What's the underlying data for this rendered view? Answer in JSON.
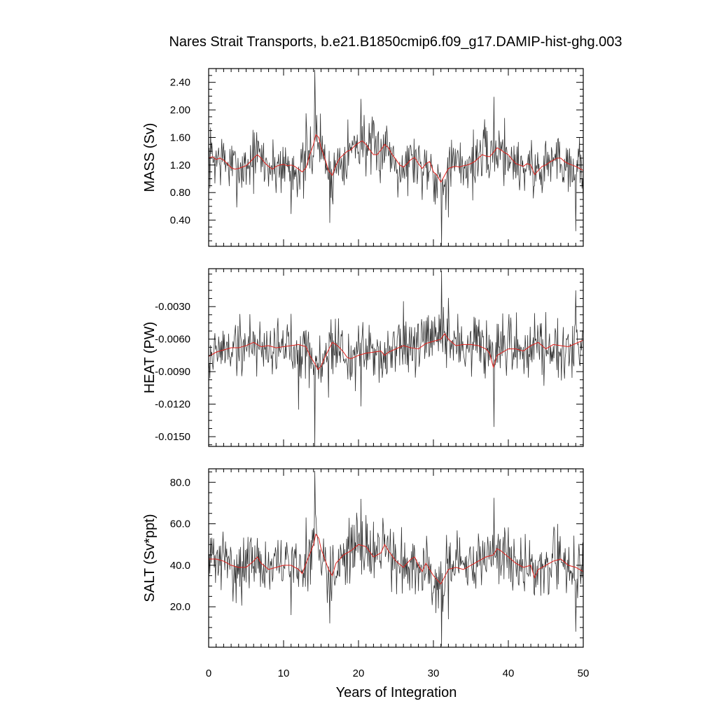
{
  "title": "Nares Strait Transports, b.e21.B1850cmip6.f09_g17.DAMIP-hist-ghg.003",
  "colors": {
    "raw_line": "#333333",
    "smooth_line": "#e0201b",
    "frame": "#000000"
  },
  "chart_data": {
    "type": "line",
    "title": "Nares Strait Transports, b.e21.B1850cmip6.f09_g17.DAMIP-hist-ghg.003",
    "xlabel": "Years of Integration",
    "xlim": [
      0,
      50
    ],
    "xticks": [
      0,
      10,
      20,
      30,
      40,
      50
    ],
    "xtick_labels": [
      "0",
      "10",
      "20",
      "30",
      "40",
      "50"
    ],
    "grid": false,
    "legend": "none",
    "panels": [
      {
        "id": "mass",
        "ylabel": "MASS (Sv)",
        "ylim": [
          0.02,
          2.6
        ],
        "yticks": [
          0.4,
          0.8,
          1.2,
          1.6,
          2.0,
          2.4
        ],
        "ytick_labels": [
          "0.40",
          "0.80",
          "1.20",
          "1.60",
          "2.00",
          "2.40"
        ],
        "seed": 7,
        "smooth": [
          [
            0,
            1.3
          ],
          [
            0.5,
            1.32
          ],
          [
            1,
            1.28
          ],
          [
            1.5,
            1.3
          ],
          [
            2,
            1.27
          ],
          [
            2.5,
            1.22
          ],
          [
            3,
            1.16
          ],
          [
            3.5,
            1.14
          ],
          [
            4,
            1.15
          ],
          [
            4.5,
            1.17
          ],
          [
            5,
            1.19
          ],
          [
            5.5,
            1.24
          ],
          [
            6,
            1.3
          ],
          [
            6.5,
            1.35
          ],
          [
            7,
            1.3
          ],
          [
            7.5,
            1.23
          ],
          [
            8,
            1.18
          ],
          [
            8.5,
            1.14
          ],
          [
            9,
            1.18
          ],
          [
            9.5,
            1.2
          ],
          [
            10,
            1.21
          ],
          [
            10.5,
            1.19
          ],
          [
            11,
            1.2
          ],
          [
            11.5,
            1.18
          ],
          [
            12,
            1.14
          ],
          [
            12.5,
            1.1
          ],
          [
            13,
            1.16
          ],
          [
            13.5,
            1.35
          ],
          [
            14,
            1.5
          ],
          [
            14.3,
            1.64
          ],
          [
            14.7,
            1.6
          ],
          [
            15,
            1.45
          ],
          [
            15.5,
            1.3
          ],
          [
            16,
            1.12
          ],
          [
            16.5,
            1.05
          ],
          [
            17,
            1.2
          ],
          [
            17.5,
            1.3
          ],
          [
            18,
            1.35
          ],
          [
            18.5,
            1.4
          ],
          [
            19,
            1.42
          ],
          [
            19.5,
            1.48
          ],
          [
            20,
            1.52
          ],
          [
            20.5,
            1.55
          ],
          [
            21,
            1.5
          ],
          [
            21.5,
            1.42
          ],
          [
            22,
            1.35
          ],
          [
            22.5,
            1.35
          ],
          [
            23,
            1.42
          ],
          [
            23.5,
            1.5
          ],
          [
            24,
            1.45
          ],
          [
            24.5,
            1.35
          ],
          [
            25,
            1.28
          ],
          [
            25.5,
            1.2
          ],
          [
            26,
            1.17
          ],
          [
            26.5,
            1.22
          ],
          [
            27,
            1.28
          ],
          [
            27.5,
            1.31
          ],
          [
            28,
            1.22
          ],
          [
            28.5,
            1.15
          ],
          [
            29,
            1.22
          ],
          [
            29.5,
            1.25
          ],
          [
            30,
            1.1
          ],
          [
            30.5,
            1.05
          ],
          [
            31,
            0.95
          ],
          [
            31.5,
            1.05
          ],
          [
            32,
            1.15
          ],
          [
            32.5,
            1.17
          ],
          [
            33,
            1.18
          ],
          [
            33.5,
            1.17
          ],
          [
            34,
            1.19
          ],
          [
            34.5,
            1.2
          ],
          [
            35,
            1.22
          ],
          [
            35.5,
            1.25
          ],
          [
            36,
            1.3
          ],
          [
            36.5,
            1.35
          ],
          [
            37,
            1.33
          ],
          [
            37.5,
            1.32
          ],
          [
            38,
            1.38
          ],
          [
            38.5,
            1.45
          ],
          [
            39,
            1.42
          ],
          [
            39.5,
            1.38
          ],
          [
            40,
            1.35
          ],
          [
            40.5,
            1.28
          ],
          [
            41,
            1.22
          ],
          [
            41.5,
            1.2
          ],
          [
            42,
            1.18
          ],
          [
            42.5,
            1.22
          ],
          [
            43,
            1.2
          ],
          [
            43.5,
            1.06
          ],
          [
            44,
            1.12
          ],
          [
            44.5,
            1.18
          ],
          [
            45,
            1.2
          ],
          [
            45.5,
            1.24
          ],
          [
            46,
            1.27
          ],
          [
            46.5,
            1.3
          ],
          [
            47,
            1.3
          ],
          [
            47.5,
            1.25
          ],
          [
            48,
            1.22
          ],
          [
            48.5,
            1.2
          ],
          [
            49,
            1.18
          ],
          [
            49.5,
            1.15
          ],
          [
            50,
            1.12
          ]
        ],
        "spikes": [
          [
            14.2,
            2.58
          ],
          [
            13.0,
            1.95
          ],
          [
            16.2,
            0.36
          ],
          [
            20.3,
            2.16
          ],
          [
            31.1,
            0.03
          ],
          [
            38.1,
            2.19
          ],
          [
            49.0,
            0.24
          ],
          [
            11.0,
            0.49
          ],
          [
            32.0,
            0.44
          ],
          [
            22.0,
            1.85
          ]
        ]
      },
      {
        "id": "heat",
        "ylabel": "HEAT (PW)",
        "ylim": [
          -0.0159,
          0.0005
        ],
        "yticks": [
          -0.003,
          -0.006,
          -0.009,
          -0.012,
          -0.015
        ],
        "ytick_labels": [
          "-0.0030",
          "-0.0060",
          "-0.0090",
          "-0.0120",
          "-0.0150"
        ],
        "seed": 19,
        "smooth": [
          [
            0,
            -0.0076
          ],
          [
            1,
            -0.0072
          ],
          [
            2,
            -0.007
          ],
          [
            3,
            -0.0068
          ],
          [
            4,
            -0.0068
          ],
          [
            5,
            -0.0066
          ],
          [
            6,
            -0.0063
          ],
          [
            7,
            -0.0067
          ],
          [
            8,
            -0.0066
          ],
          [
            9,
            -0.0068
          ],
          [
            10,
            -0.0067
          ],
          [
            11,
            -0.0066
          ],
          [
            12,
            -0.0065
          ],
          [
            13,
            -0.0067
          ],
          [
            13.5,
            -0.0075
          ],
          [
            14.2,
            -0.0083
          ],
          [
            14.6,
            -0.0088
          ],
          [
            15,
            -0.0085
          ],
          [
            15.5,
            -0.0077
          ],
          [
            16,
            -0.007
          ],
          [
            16.5,
            -0.0063
          ],
          [
            17,
            -0.0065
          ],
          [
            17.5,
            -0.0068
          ],
          [
            18,
            -0.0072
          ],
          [
            18.5,
            -0.0077
          ],
          [
            19,
            -0.0078
          ],
          [
            20,
            -0.0075
          ],
          [
            21,
            -0.0073
          ],
          [
            22,
            -0.0072
          ],
          [
            23,
            -0.0071
          ],
          [
            23.5,
            -0.0075
          ],
          [
            24,
            -0.0072
          ],
          [
            25,
            -0.0069
          ],
          [
            26,
            -0.0066
          ],
          [
            27,
            -0.0068
          ],
          [
            28,
            -0.0069
          ],
          [
            29,
            -0.0064
          ],
          [
            30,
            -0.0062
          ],
          [
            31,
            -0.006
          ],
          [
            31.5,
            -0.0055
          ],
          [
            32,
            -0.006
          ],
          [
            33,
            -0.0066
          ],
          [
            34,
            -0.0065
          ],
          [
            35,
            -0.0065
          ],
          [
            36,
            -0.0066
          ],
          [
            37,
            -0.0069
          ],
          [
            37.5,
            -0.0073
          ],
          [
            38,
            -0.0086
          ],
          [
            38.5,
            -0.0075
          ],
          [
            39,
            -0.0073
          ],
          [
            40,
            -0.0069
          ],
          [
            41,
            -0.0069
          ],
          [
            42,
            -0.0071
          ],
          [
            43,
            -0.0066
          ],
          [
            44,
            -0.0063
          ],
          [
            45,
            -0.0069
          ],
          [
            46,
            -0.0065
          ],
          [
            47,
            -0.0066
          ],
          [
            48,
            -0.0067
          ],
          [
            49,
            -0.0064
          ],
          [
            50,
            -0.0061
          ]
        ],
        "spikes": [
          [
            14.2,
            -0.0159
          ],
          [
            31.1,
            0.0003
          ],
          [
            38.1,
            -0.0141
          ],
          [
            49.0,
            -0.0015
          ],
          [
            20.3,
            -0.0122
          ],
          [
            32.0,
            -0.0022
          ],
          [
            12.0,
            -0.0125
          ],
          [
            26.0,
            -0.0025
          ],
          [
            16.0,
            -0.0114
          ],
          [
            45.0,
            -0.0035
          ]
        ]
      },
      {
        "id": "salt",
        "ylabel": "SALT (Sv*ppt)",
        "ylim": [
          0.5,
          86.5
        ],
        "yticks": [
          20.0,
          40.0,
          60.0,
          80.0
        ],
        "ytick_labels": [
          "20.0",
          "40.0",
          "60.0",
          "80.0"
        ],
        "seed": 31,
        "smooth": [
          [
            0,
            43
          ],
          [
            1,
            43
          ],
          [
            2,
            42
          ],
          [
            3,
            40
          ],
          [
            4,
            39
          ],
          [
            5,
            39
          ],
          [
            6,
            42
          ],
          [
            6.5,
            44
          ],
          [
            7,
            41
          ],
          [
            8,
            38
          ],
          [
            9,
            39
          ],
          [
            10,
            40
          ],
          [
            11,
            40
          ],
          [
            12,
            38
          ],
          [
            12.5,
            36
          ],
          [
            13,
            41
          ],
          [
            14,
            50
          ],
          [
            14.3,
            55
          ],
          [
            14.7,
            53
          ],
          [
            15,
            48
          ],
          [
            16,
            38
          ],
          [
            16.5,
            35
          ],
          [
            17,
            41
          ],
          [
            18,
            45
          ],
          [
            19,
            47
          ],
          [
            20,
            50
          ],
          [
            21,
            49
          ],
          [
            22,
            44
          ],
          [
            23,
            46
          ],
          [
            23.5,
            50
          ],
          [
            24,
            47
          ],
          [
            25,
            42
          ],
          [
            26,
            39
          ],
          [
            27,
            43
          ],
          [
            27.5,
            44
          ],
          [
            28,
            40
          ],
          [
            28.5,
            37
          ],
          [
            29,
            41
          ],
          [
            30,
            35
          ],
          [
            31,
            31
          ],
          [
            32,
            38
          ],
          [
            33,
            39
          ],
          [
            34,
            38
          ],
          [
            35,
            40
          ],
          [
            36,
            42
          ],
          [
            37,
            44
          ],
          [
            38,
            45
          ],
          [
            38.5,
            48
          ],
          [
            39,
            47
          ],
          [
            40,
            44
          ],
          [
            41,
            41
          ],
          [
            42,
            39
          ],
          [
            43,
            40
          ],
          [
            43.5,
            34
          ],
          [
            44,
            38
          ],
          [
            45,
            40
          ],
          [
            46,
            42
          ],
          [
            47,
            43
          ],
          [
            48,
            40
          ],
          [
            49,
            39
          ],
          [
            50,
            37
          ]
        ],
        "spikes": [
          [
            14.2,
            85.5
          ],
          [
            13.0,
            63
          ],
          [
            16.2,
            12
          ],
          [
            20.3,
            72
          ],
          [
            31.1,
            1
          ],
          [
            38.1,
            72.5
          ],
          [
            49.0,
            8
          ],
          [
            11.0,
            16
          ],
          [
            32.0,
            14
          ],
          [
            22.0,
            61
          ]
        ]
      }
    ]
  }
}
